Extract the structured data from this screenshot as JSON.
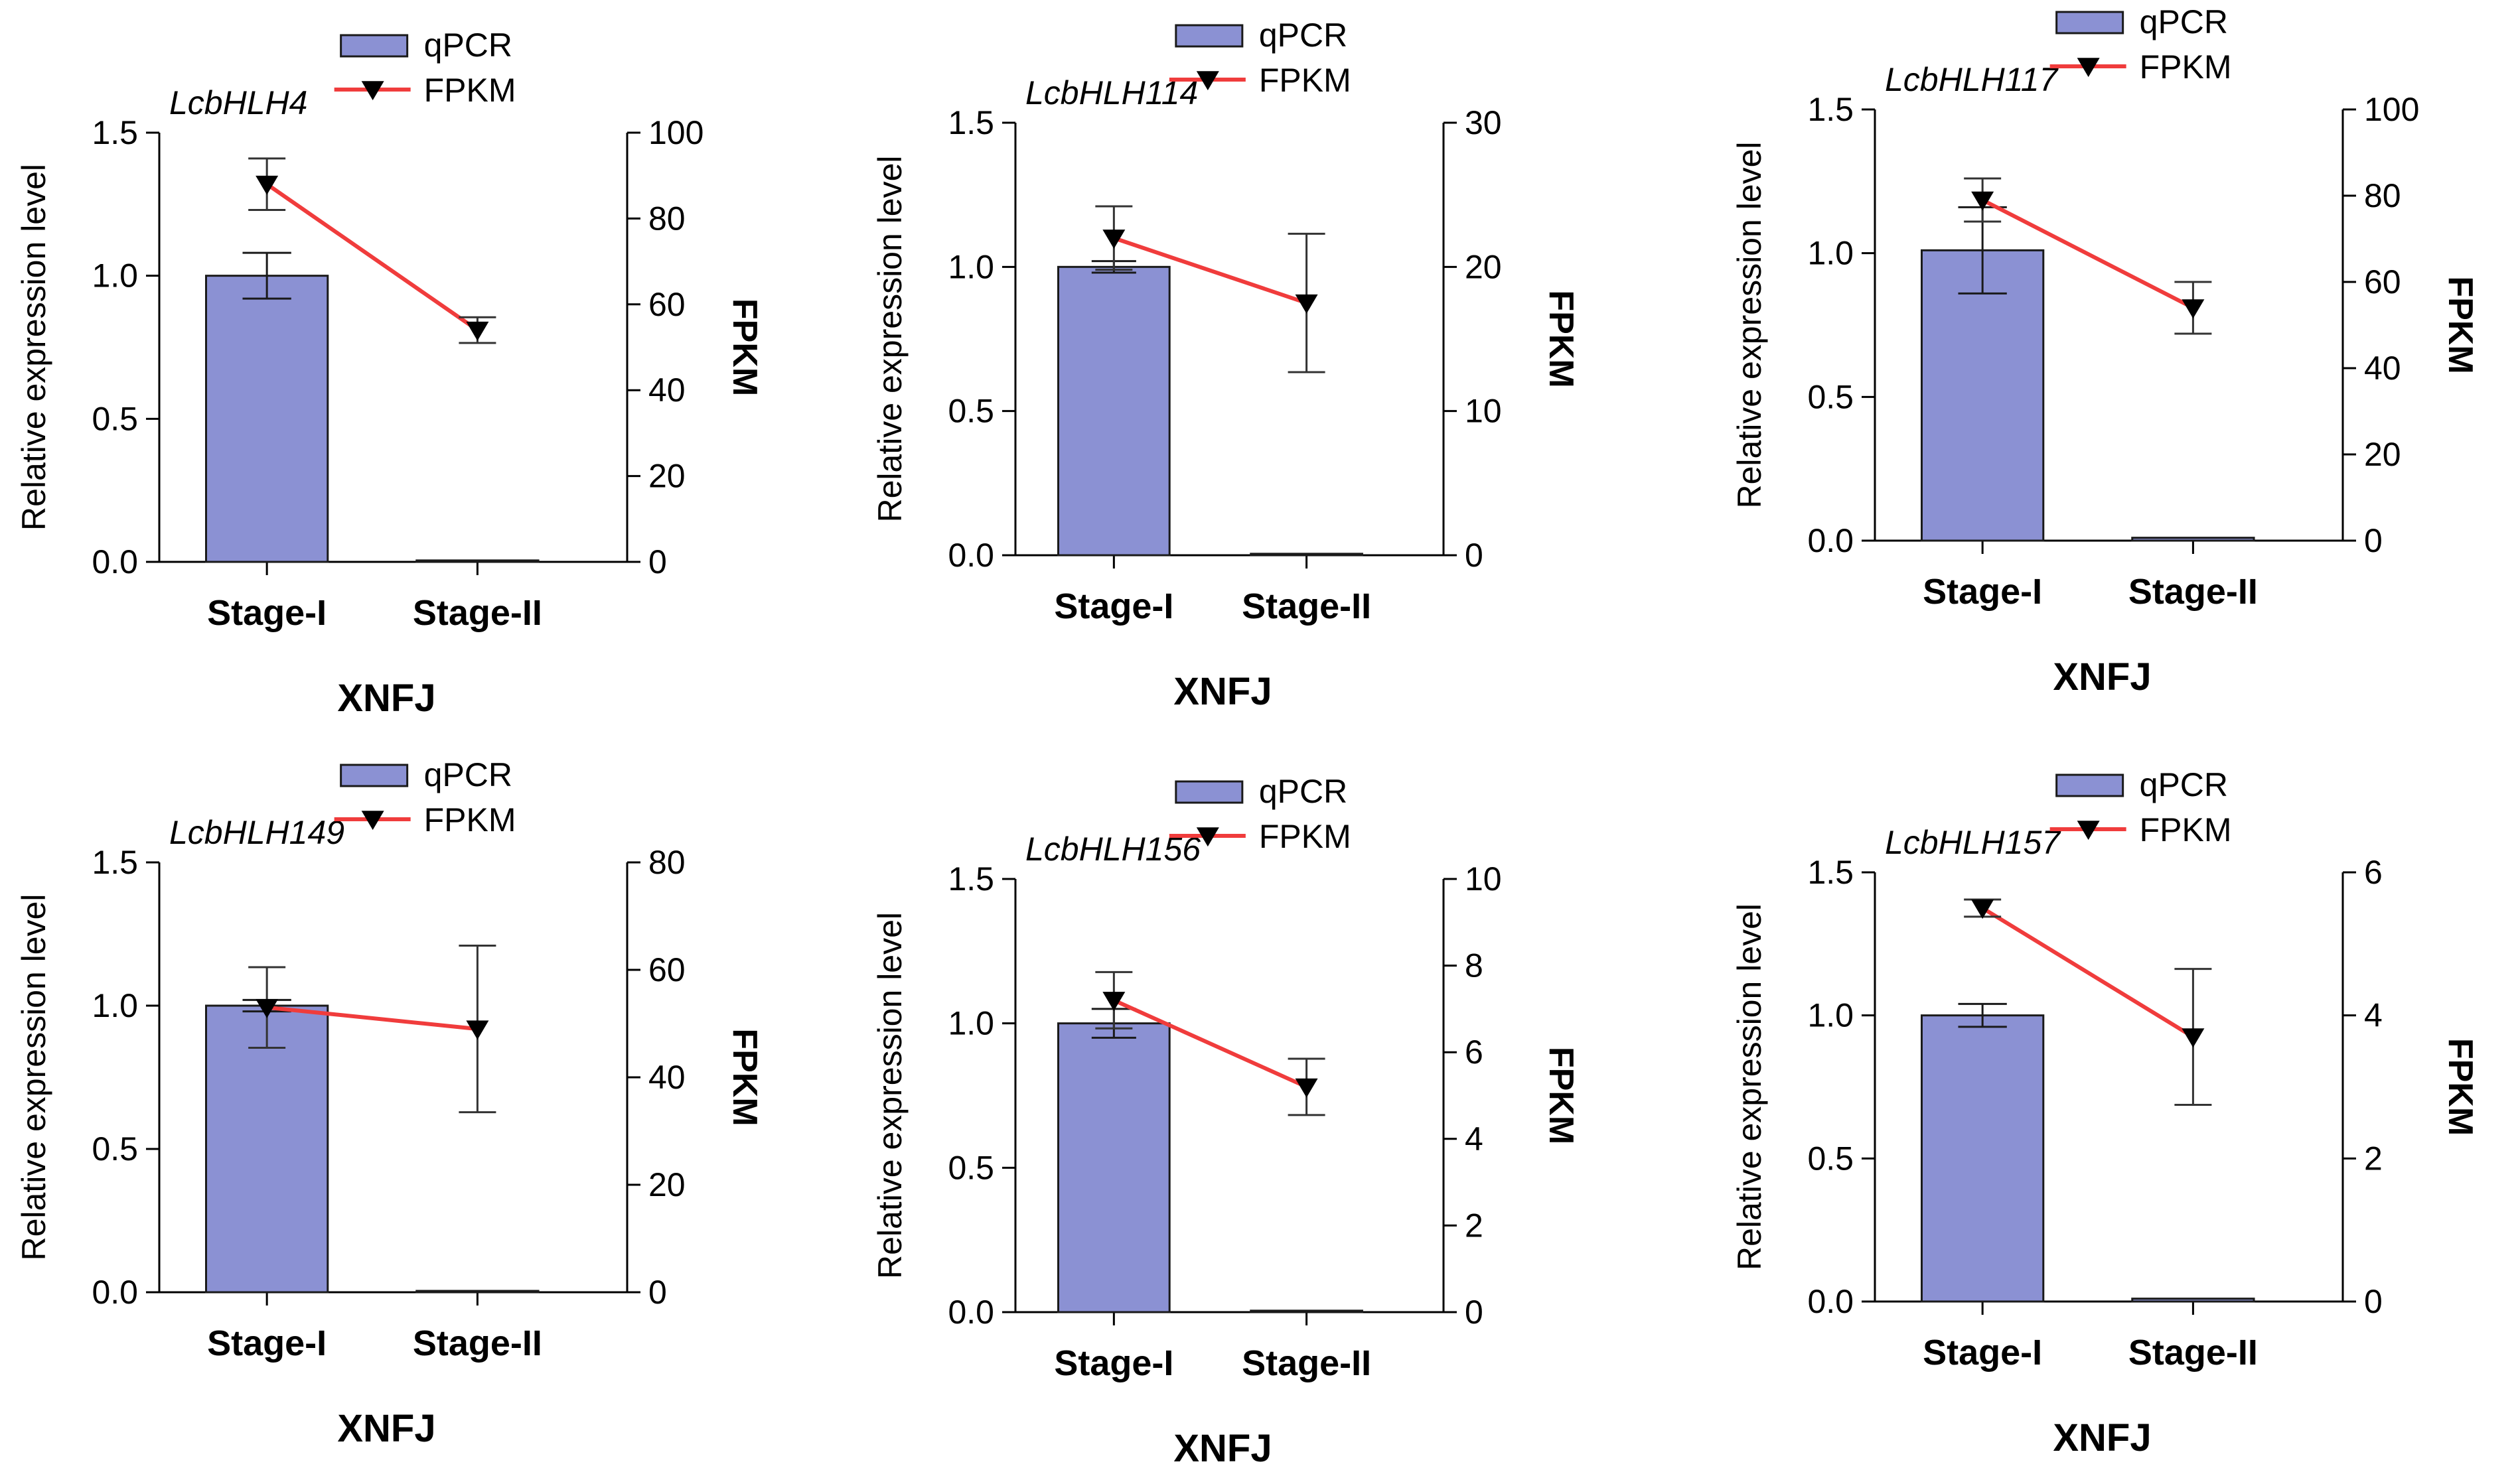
{
  "legend": {
    "qpcr": "qPCR",
    "fpkm": "FPKM"
  },
  "colors": {
    "bar_fill": "#8b91d3",
    "bar_stroke": "#1a1a1a",
    "line": "#f03c3c",
    "marker": "#000000"
  },
  "chart_data": [
    {
      "type": "bar",
      "title": "LcbHLH4",
      "xlabel": "XNFJ",
      "ylabel": "Relative expression level",
      "ylabel_right": "FPKM",
      "categories": [
        "Stage-I",
        "Stage-II"
      ],
      "ylim": [
        0,
        1.5
      ],
      "yticks": [
        0.0,
        0.5,
        1.0,
        1.5
      ],
      "ytick_labels": [
        "0.0",
        "0.5",
        "1.0",
        "1.5"
      ],
      "y2lim": [
        0,
        100
      ],
      "y2ticks": [
        0,
        20,
        40,
        60,
        80,
        100
      ],
      "y2tick_labels": [
        "0",
        "20",
        "40",
        "60",
        "80",
        "100"
      ],
      "series": [
        {
          "name": "qPCR",
          "type": "bar",
          "axis": "left",
          "values": [
            1.0,
            0.005
          ],
          "errors": [
            0.08,
            0
          ]
        },
        {
          "name": "FPKM",
          "type": "line",
          "axis": "right",
          "values": [
            88,
            54
          ],
          "errors": [
            6,
            3
          ]
        }
      ]
    },
    {
      "type": "bar",
      "title": "LcbHLH114",
      "xlabel": "XNFJ",
      "ylabel": "Relative expression level",
      "ylabel_right": "FPKM",
      "categories": [
        "Stage-I",
        "Stage-II"
      ],
      "ylim": [
        0,
        1.5
      ],
      "yticks": [
        0.0,
        0.5,
        1.0,
        1.5
      ],
      "ytick_labels": [
        "0.0",
        "0.5",
        "1.0",
        "1.5"
      ],
      "y2lim": [
        0,
        30
      ],
      "y2ticks": [
        0,
        10,
        20,
        30
      ],
      "y2tick_labels": [
        "0",
        "10",
        "20",
        "30"
      ],
      "series": [
        {
          "name": "qPCR",
          "type": "bar",
          "axis": "left",
          "values": [
            1.0,
            0.005
          ],
          "errors": [
            0.02,
            0
          ]
        },
        {
          "name": "FPKM",
          "type": "line",
          "axis": "right",
          "values": [
            22,
            17.5
          ],
          "errors": [
            2.2,
            4.8
          ]
        }
      ]
    },
    {
      "type": "bar",
      "title": "LcbHLH117",
      "xlabel": "XNFJ",
      "ylabel": "Relative expression level",
      "ylabel_right": "FPKM",
      "categories": [
        "Stage-I",
        "Stage-II"
      ],
      "ylim": [
        0,
        1.5
      ],
      "yticks": [
        0.0,
        0.5,
        1.0,
        1.5
      ],
      "ytick_labels": [
        "0.0",
        "0.5",
        "1.0",
        "1.5"
      ],
      "y2lim": [
        0,
        100
      ],
      "y2ticks": [
        0,
        20,
        40,
        60,
        80,
        100
      ],
      "y2tick_labels": [
        "0",
        "20",
        "40",
        "60",
        "80",
        "100"
      ],
      "series": [
        {
          "name": "qPCR",
          "type": "bar",
          "axis": "left",
          "values": [
            1.01,
            0.01
          ],
          "errors": [
            0.15,
            0
          ]
        },
        {
          "name": "FPKM",
          "type": "line",
          "axis": "right",
          "values": [
            79,
            54
          ],
          "errors": [
            5,
            6
          ]
        }
      ]
    },
    {
      "type": "bar",
      "title": "LcbHLH149",
      "xlabel": "XNFJ",
      "ylabel": "Relative expression level",
      "ylabel_right": "FPKM",
      "categories": [
        "Stage-I",
        "Stage-II"
      ],
      "ylim": [
        0,
        1.5
      ],
      "yticks": [
        0.0,
        0.5,
        1.0,
        1.5
      ],
      "ytick_labels": [
        "0.0",
        "0.5",
        "1.0",
        "1.5"
      ],
      "y2lim": [
        0,
        80
      ],
      "y2ticks": [
        0,
        20,
        40,
        60,
        80
      ],
      "y2tick_labels": [
        "0",
        "20",
        "40",
        "60",
        "80"
      ],
      "series": [
        {
          "name": "qPCR",
          "type": "bar",
          "axis": "left",
          "values": [
            1.0,
            0.0
          ],
          "errors": [
            0.02,
            0
          ]
        },
        {
          "name": "FPKM",
          "type": "line",
          "axis": "right",
          "values": [
            53,
            49
          ],
          "errors": [
            7.5,
            15.5
          ]
        }
      ]
    },
    {
      "type": "bar",
      "title": "LcbHLH156",
      "xlabel": "XNFJ",
      "ylabel": "Relative expression level",
      "ylabel_right": "FPKM",
      "categories": [
        "Stage-I",
        "Stage-II"
      ],
      "ylim": [
        0,
        1.5
      ],
      "yticks": [
        0.0,
        0.5,
        1.0,
        1.5
      ],
      "ytick_labels": [
        "0.0",
        "0.5",
        "1.0",
        "1.5"
      ],
      "y2lim": [
        0,
        10
      ],
      "y2ticks": [
        0,
        2,
        4,
        6,
        8,
        10
      ],
      "y2tick_labels": [
        "0",
        "2",
        "4",
        "6",
        "8",
        "10"
      ],
      "series": [
        {
          "name": "qPCR",
          "type": "bar",
          "axis": "left",
          "values": [
            1.0,
            0.005
          ],
          "errors": [
            0.05,
            0
          ]
        },
        {
          "name": "FPKM",
          "type": "line",
          "axis": "right",
          "values": [
            7.2,
            5.2
          ],
          "errors": [
            0.65,
            0.65
          ]
        }
      ]
    },
    {
      "type": "bar",
      "title": "LcbHLH157",
      "xlabel": "XNFJ",
      "ylabel": "Relative expression level",
      "ylabel_right": "FPKM",
      "categories": [
        "Stage-I",
        "Stage-II"
      ],
      "ylim": [
        0,
        1.5
      ],
      "yticks": [
        0.0,
        0.5,
        1.0,
        1.5
      ],
      "ytick_labels": [
        "0.0",
        "0.5",
        "1.0",
        "1.5"
      ],
      "y2lim": [
        0,
        6
      ],
      "y2ticks": [
        0,
        2,
        4,
        6
      ],
      "y2tick_labels": [
        "0",
        "2",
        "4",
        "6"
      ],
      "series": [
        {
          "name": "qPCR",
          "type": "bar",
          "axis": "left",
          "values": [
            1.0,
            0.01
          ],
          "errors": [
            0.04,
            0
          ]
        },
        {
          "name": "FPKM",
          "type": "line",
          "axis": "right",
          "values": [
            5.5,
            3.7
          ],
          "errors": [
            0.12,
            0.95
          ]
        }
      ]
    }
  ]
}
